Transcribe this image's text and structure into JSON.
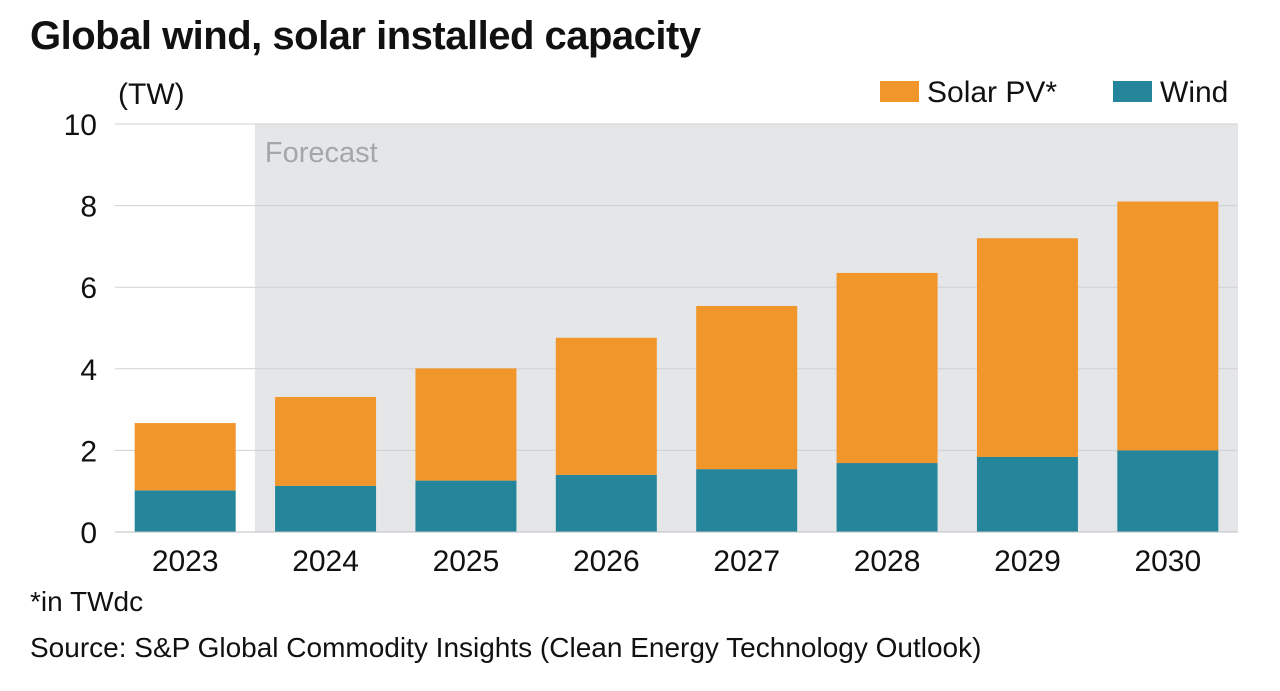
{
  "title": "Global wind, solar installed capacity",
  "footnote": "*in TWdc",
  "source": "Source: S&P Global Commodity Insights (Clean Energy Technology Outlook)",
  "chart_data": {
    "type": "bar",
    "stacked": true,
    "title": "Global wind, solar installed capacity",
    "ylabel": "(TW)",
    "xlabel": "",
    "ylim": [
      0,
      10
    ],
    "yticks": [
      "0",
      "2",
      "4",
      "6",
      "8",
      "10"
    ],
    "grid": true,
    "legend": "top-right",
    "categories": [
      "2023",
      "2024",
      "2025",
      "2026",
      "2027",
      "2028",
      "2029",
      "2030"
    ],
    "series": [
      {
        "name": "Wind",
        "color": "#25869b",
        "values": [
          1.02,
          1.13,
          1.26,
          1.4,
          1.54,
          1.69,
          1.84,
          2.0
        ]
      },
      {
        "name": "Solar PV*",
        "color": "#f0962a",
        "values": [
          1.65,
          2.18,
          2.75,
          3.36,
          4.0,
          4.66,
          5.36,
          6.1
        ]
      }
    ],
    "annotation": {
      "label": "Forecast",
      "from_category": "2024",
      "to_category": "2030",
      "color": "#e5e6e8"
    }
  }
}
